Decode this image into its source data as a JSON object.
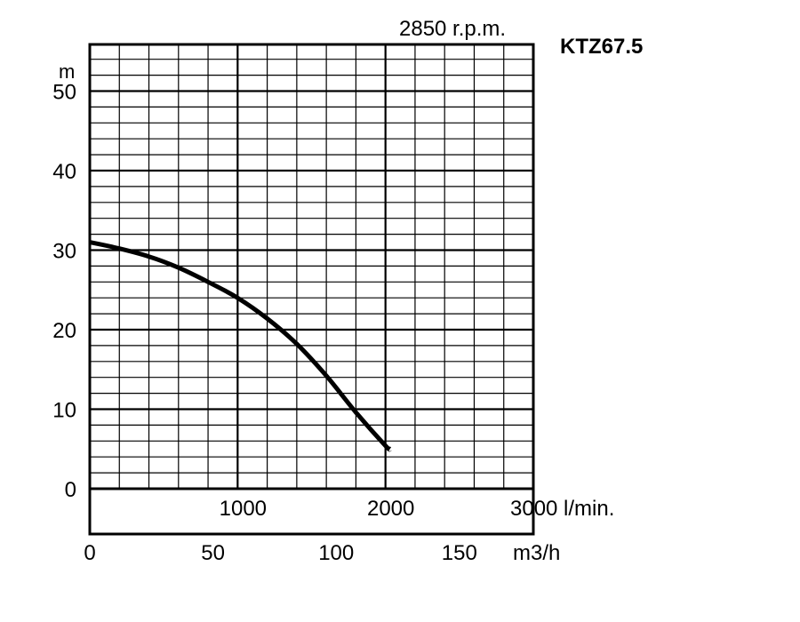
{
  "chart_data": {
    "type": "line",
    "title": "KTZ67.5",
    "subtitle": "2850 r.p.m.",
    "ylabel": "m",
    "ylim": [
      0,
      55
    ],
    "yticks": [
      0,
      10,
      20,
      30,
      40,
      50
    ],
    "y_tick_labels": [
      "0",
      "10",
      "20",
      "30",
      "40",
      "50"
    ],
    "xlim_lpm": [
      0,
      3000
    ],
    "x_tick_labels_lpm": [
      "1000",
      "2000",
      "3000 l/min."
    ],
    "x_ticks_lpm": [
      1000,
      2000,
      3000
    ],
    "xlim_m3h": [
      0,
      180
    ],
    "x_tick_labels_m3h": [
      "0",
      "50",
      "100",
      "150"
    ],
    "x_ticks_m3h": [
      0,
      50,
      100,
      150
    ],
    "x_unit_m3h": "m3/h",
    "grid": true,
    "series": [
      {
        "x": [
          0,
          200,
          400,
          600,
          800,
          1000,
          1200,
          1400,
          1600,
          1800,
          2000,
          2030
        ],
        "y": [
          31,
          30.2,
          29.2,
          27.8,
          26.0,
          24.0,
          21.4,
          18.2,
          14.2,
          9.6,
          5.4,
          5.0
        ]
      }
    ]
  }
}
